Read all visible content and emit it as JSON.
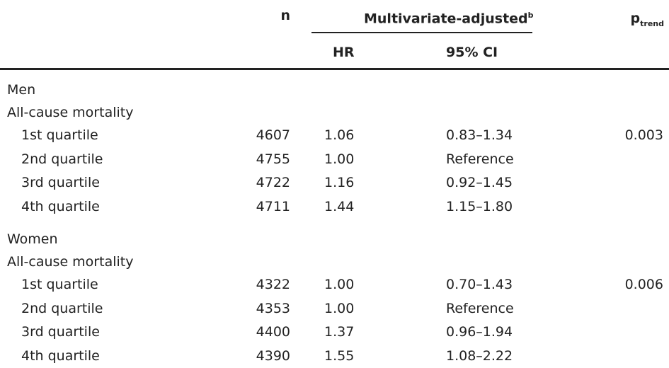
{
  "header": {
    "n": "n",
    "group": {
      "label": "Multivariate-adjusted",
      "superscript": "b"
    },
    "hr": "HR",
    "ci": "95% CI",
    "p": {
      "label": "p",
      "subscript": "trend"
    }
  },
  "sections": [
    {
      "group": "Men",
      "outcome": "All-cause mortality",
      "rows": [
        {
          "label": "1st quartile",
          "n": "4607",
          "hr": "1.06",
          "ci": "0.83–1.34",
          "p": "0.003"
        },
        {
          "label": "2nd quartile",
          "n": "4755",
          "hr": "1.00",
          "ci": "Reference"
        },
        {
          "label": "3rd quartile",
          "n": "4722",
          "hr": "1.16",
          "ci": "0.92–1.45"
        },
        {
          "label": "4th quartile",
          "n": "4711",
          "hr": "1.44",
          "ci": "1.15–1.80"
        }
      ]
    },
    {
      "group": "Women",
      "outcome": "All-cause mortality",
      "rows": [
        {
          "label": "1st quartile",
          "n": "4322",
          "hr": "1.00",
          "ci": "0.70–1.43",
          "p": "0.006"
        },
        {
          "label": "2nd quartile",
          "n": "4353",
          "hr": "1.00",
          "ci": "Reference"
        },
        {
          "label": "3rd quartile",
          "n": "4400",
          "hr": "1.37",
          "ci": "0.96–1.94"
        },
        {
          "label": "4th quartile",
          "n": "4390",
          "hr": "1.55",
          "ci": "1.08–2.22"
        }
      ]
    }
  ]
}
